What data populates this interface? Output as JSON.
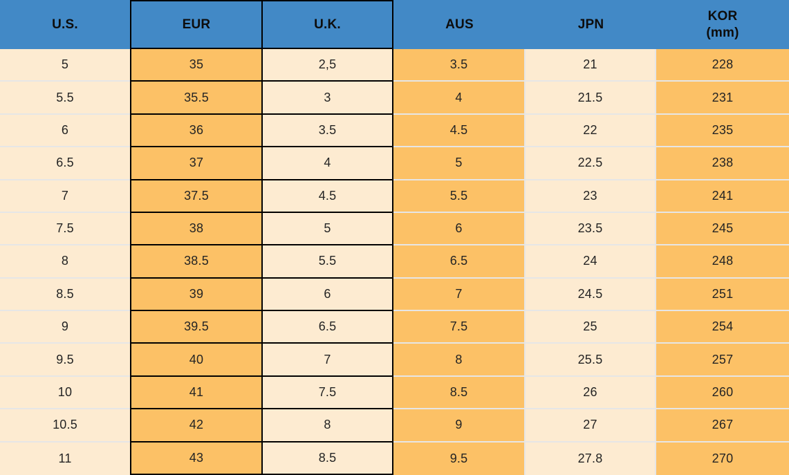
{
  "colors": {
    "header_bg": "#4289c6",
    "cell_orange": "#fcc166",
    "cell_cream": "#fdebd1",
    "border_dark": "#000000",
    "gridline": "#e6e6e6",
    "text": "#242424"
  },
  "chart_data": {
    "type": "table",
    "columns": [
      {
        "id": "us",
        "label": "U.S."
      },
      {
        "id": "eur",
        "label": "EUR"
      },
      {
        "id": "uk",
        "label": "U.K."
      },
      {
        "id": "aus",
        "label": "AUS"
      },
      {
        "id": "jpn",
        "label": "JPN"
      },
      {
        "id": "kor",
        "label": "KOR",
        "label2": "(mm)"
      }
    ],
    "rows": [
      [
        "5",
        "35",
        "2,5",
        "3.5",
        "21",
        "228"
      ],
      [
        "5.5",
        "35.5",
        "3",
        "4",
        "21.5",
        "231"
      ],
      [
        "6",
        "36",
        "3.5",
        "4.5",
        "22",
        "235"
      ],
      [
        "6.5",
        "37",
        "4",
        "5",
        "22.5",
        "238"
      ],
      [
        "7",
        "37.5",
        "4.5",
        "5.5",
        "23",
        "241"
      ],
      [
        "7.5",
        "38",
        "5",
        "6",
        "23.5",
        "245"
      ],
      [
        "8",
        "38.5",
        "5.5",
        "6.5",
        "24",
        "248"
      ],
      [
        "8.5",
        "39",
        "6",
        "7",
        "24.5",
        "251"
      ],
      [
        "9",
        "39.5",
        "6.5",
        "7.5",
        "25",
        "254"
      ],
      [
        "9.5",
        "40",
        "7",
        "8",
        "25.5",
        "257"
      ],
      [
        "10",
        "41",
        "7.5",
        "8.5",
        "26",
        "260"
      ],
      [
        "10.5",
        "42",
        "8",
        "9",
        "27",
        "267"
      ],
      [
        "11",
        "43",
        "8.5",
        "9.5",
        "27.8",
        "270"
      ]
    ]
  }
}
